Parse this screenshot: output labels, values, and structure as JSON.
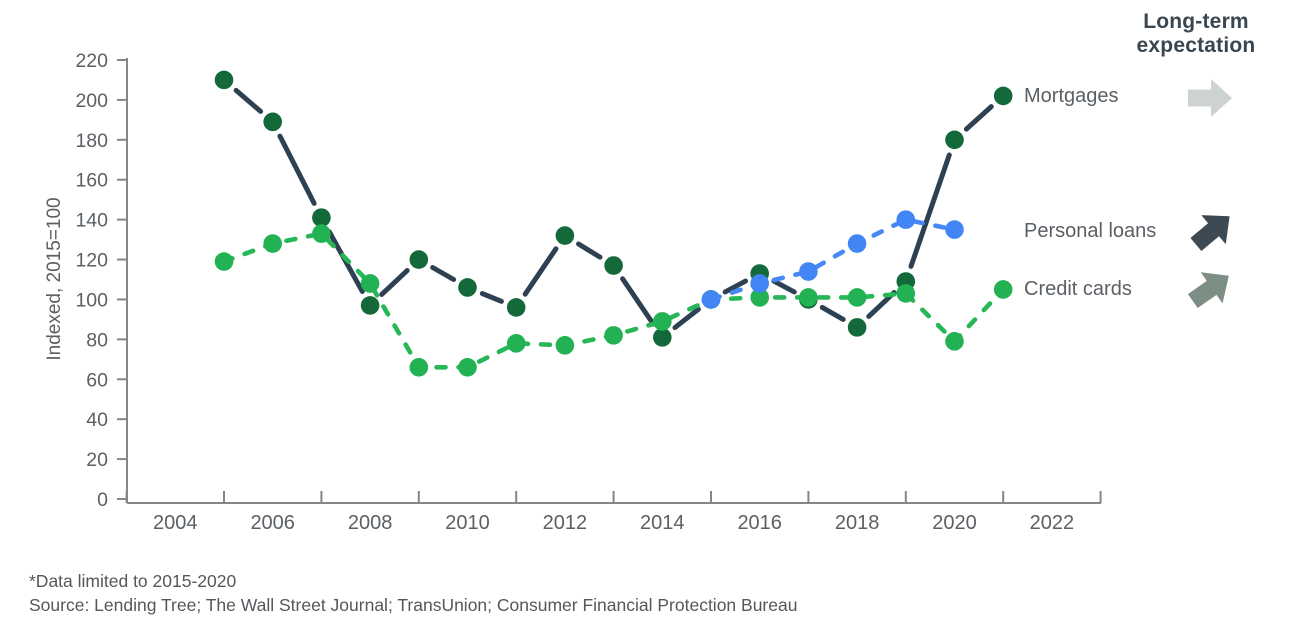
{
  "header": {
    "title_line1": "Long-term",
    "title_line2": "expectation"
  },
  "chart_data": {
    "type": "line",
    "title": "Long-term expectation",
    "ylabel": "Indexed, 2015=100",
    "ylim": [
      0,
      220
    ],
    "y_ticks": [
      0,
      20,
      40,
      60,
      80,
      100,
      120,
      140,
      160,
      180,
      200,
      220
    ],
    "x_tick_labels": [
      2004,
      2006,
      2008,
      2010,
      2012,
      2014,
      2016,
      2018,
      2020,
      2022
    ],
    "x_minor_tick_years": [
      2003,
      2005,
      2007,
      2009,
      2011,
      2013,
      2015,
      2017,
      2019,
      2021,
      2023
    ],
    "grid": "off",
    "legend_position": "right",
    "series": [
      {
        "name": "Mortgages",
        "years": [
          2005,
          2006,
          2007,
          2008,
          2009,
          2010,
          2011,
          2012,
          2013,
          2014,
          2015,
          2016,
          2017,
          2018,
          2019,
          2020,
          2021
        ],
        "values": [
          210,
          189,
          141,
          97,
          120,
          106,
          96,
          132,
          117,
          81,
          100,
          113,
          100,
          86,
          109,
          180,
          202
        ],
        "dot_color": "#14693a",
        "line_color": "#2e4152",
        "line_style": "solid",
        "long_term_expectation": "flat",
        "arrow_color": "#cdd3d0"
      },
      {
        "name": "Credit cards",
        "years": [
          2005,
          2006,
          2007,
          2008,
          2009,
          2010,
          2011,
          2012,
          2013,
          2014,
          2015,
          2016,
          2017,
          2018,
          2019,
          2020,
          2021
        ],
        "values": [
          119,
          128,
          133,
          108,
          66,
          66,
          78,
          77,
          82,
          89,
          100,
          101,
          101,
          101,
          103,
          79,
          105
        ],
        "dot_color": "#23b253",
        "line_color": "#28b757",
        "line_style": "dashed",
        "long_term_expectation": "up",
        "arrow_color": "#7d8e84"
      },
      {
        "name": "Personal loans",
        "years": [
          2015,
          2016,
          2017,
          2018,
          2019,
          2020
        ],
        "values": [
          100,
          108,
          114,
          128,
          140,
          135
        ],
        "dot_color": "#4285f4",
        "line_color": "#4688f4",
        "line_style": "dashed",
        "long_term_expectation": "up",
        "arrow_color": "#3d4a54"
      }
    ],
    "axis_color": "#83878a",
    "tick_label_color": "#5b6065"
  },
  "footnotes": {
    "data_note": "*Data limited to 2015-2020",
    "source": "Source: Lending Tree; The Wall Street Journal; TransUnion; Consumer Financial Protection Bureau"
  }
}
